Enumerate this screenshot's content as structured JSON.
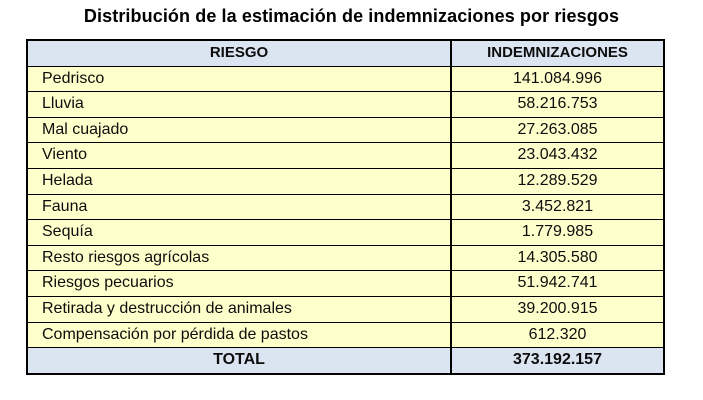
{
  "title": "Distribución de la estimación de indemnizaciones por riesgos",
  "table": {
    "headers": [
      "RIESGO",
      "INDEMNIZACIONES"
    ],
    "rows": [
      {
        "riesgo": "Pedrisco",
        "indemnizacion": "141.084.996"
      },
      {
        "riesgo": "Lluvia",
        "indemnizacion": "58.216.753"
      },
      {
        "riesgo": "Mal cuajado",
        "indemnizacion": "27.263.085"
      },
      {
        "riesgo": "Viento",
        "indemnizacion": "23.043.432"
      },
      {
        "riesgo": "Helada",
        "indemnizacion": "12.289.529"
      },
      {
        "riesgo": "Fauna",
        "indemnizacion": "3.452.821"
      },
      {
        "riesgo": "Sequía",
        "indemnizacion": "1.779.985"
      },
      {
        "riesgo": "Resto riesgos agrícolas",
        "indemnizacion": "14.305.580"
      },
      {
        "riesgo": "Riesgos pecuarios",
        "indemnizacion": "51.942.741"
      },
      {
        "riesgo": "Retirada y destrucción de animales",
        "indemnizacion": "39.200.915"
      },
      {
        "riesgo": "Compensación por pérdida de pastos",
        "indemnizacion": "612.320"
      }
    ],
    "total_label": "TOTAL",
    "total_value": "373.192.157"
  },
  "chart_data": {
    "type": "table",
    "title": "Distribución de la estimación de indemnizaciones por riesgos",
    "columns": [
      "RIESGO",
      "INDEMNIZACIONES"
    ],
    "categories": [
      "Pedrisco",
      "Lluvia",
      "Mal cuajado",
      "Viento",
      "Helada",
      "Fauna",
      "Sequía",
      "Resto riesgos agrícolas",
      "Riesgos pecuarios",
      "Retirada y destrucción de animales",
      "Compensación por pérdida de pastos"
    ],
    "values": [
      141084996,
      58216753,
      27263085,
      23043432,
      12289529,
      3452821,
      1779985,
      14305580,
      51942741,
      39200915,
      612320
    ],
    "total": 373192157
  },
  "colors": {
    "header_bg": "#dbe5f1",
    "row_bg": "#ffffcc",
    "border": "#000000",
    "text": "#0d0d0d"
  }
}
